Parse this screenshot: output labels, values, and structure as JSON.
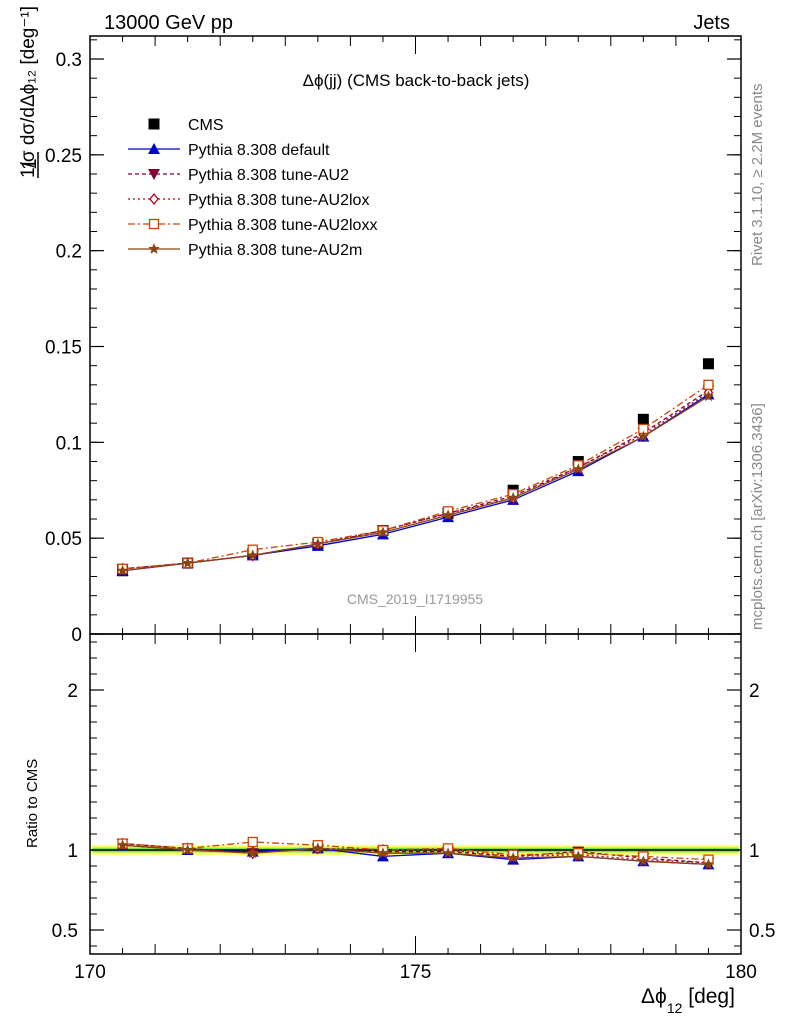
{
  "header": {
    "left": "13000 GeV pp",
    "right": "Jets"
  },
  "side_labels": {
    "rivet": "Rivet 3.1.10, ≥ 2.2M events",
    "mcplots": "mcplots.cern.ch [arXiv:1306.3436]"
  },
  "plot_title": "Δϕ(jj) (CMS back-to-back jets)",
  "watermark": "CMS_2019_I1719955",
  "colors": {
    "cms": "#000000",
    "default": "#0000cc",
    "au2": "#800033",
    "au2lox": "#b3001a",
    "au2loxx": "#cc4400",
    "au2m": "#8b4513",
    "band_inner": "#33cc33",
    "band_outer": "#ffff66"
  },
  "chart_data": [
    {
      "type": "line",
      "panel": "main",
      "ylabel": "1/σ dσ/dΔϕ_12 [deg^-1]",
      "xlim": [
        170,
        180
      ],
      "ylim": [
        0,
        0.312
      ],
      "yticks": [
        "0",
        "0.05",
        "0.1",
        "0.15",
        "0.2",
        "0.25",
        "0.3"
      ],
      "x": [
        170.5,
        171.5,
        172.5,
        173.5,
        174.5,
        175.5,
        176.5,
        177.5,
        178.5,
        179.5
      ],
      "series": [
        {
          "name": "CMS",
          "key": "cms",
          "marker": "square",
          "values": [
            0.033,
            0.037,
            0.042,
            0.047,
            0.054,
            0.063,
            0.075,
            0.09,
            0.112,
            0.141
          ]
        },
        {
          "name": "Pythia 8.308 default",
          "key": "default",
          "marker": "triangle-up",
          "values": [
            0.033,
            0.037,
            0.041,
            0.046,
            0.052,
            0.061,
            0.07,
            0.085,
            0.103,
            0.125
          ]
        },
        {
          "name": "Pythia 8.308 tune-AU2",
          "key": "au2",
          "marker": "triangle-down",
          "values": [
            0.034,
            0.037,
            0.041,
            0.047,
            0.054,
            0.063,
            0.072,
            0.087,
            0.105,
            0.127
          ]
        },
        {
          "name": "Pythia 8.308 tune-AU2lox",
          "key": "au2lox",
          "marker": "diamond",
          "values": [
            0.034,
            0.037,
            0.041,
            0.047,
            0.054,
            0.063,
            0.071,
            0.087,
            0.104,
            0.126
          ]
        },
        {
          "name": "Pythia 8.308 tune-AU2loxx",
          "key": "au2loxx",
          "marker": "open-square",
          "values": [
            0.034,
            0.037,
            0.044,
            0.048,
            0.054,
            0.064,
            0.073,
            0.088,
            0.107,
            0.13
          ]
        },
        {
          "name": "Pythia 8.308 tune-AU2m",
          "key": "au2m",
          "marker": "star",
          "values": [
            0.033,
            0.037,
            0.041,
            0.047,
            0.053,
            0.062,
            0.071,
            0.086,
            0.103,
            0.124
          ]
        }
      ]
    },
    {
      "type": "line",
      "panel": "ratio",
      "xlabel": "Δϕ_12 [deg]",
      "ylabel": "Ratio to CMS",
      "xlim": [
        170,
        180
      ],
      "ylim": [
        0.35,
        2.35
      ],
      "xticks": [
        "170",
        "175",
        "180"
      ],
      "yticks": [
        "0.5",
        "1",
        "2"
      ],
      "x": [
        170.5,
        171.5,
        172.5,
        173.5,
        174.5,
        175.5,
        176.5,
        177.5,
        178.5,
        179.5
      ],
      "band": {
        "inner": [
          0.985,
          1.015
        ],
        "outer": [
          0.97,
          1.03
        ]
      },
      "series": [
        {
          "name": "Pythia 8.308 default",
          "key": "default",
          "marker": "triangle-up",
          "values": [
            1.03,
            1.0,
            0.99,
            1.01,
            0.96,
            0.98,
            0.94,
            0.96,
            0.93,
            0.91
          ]
        },
        {
          "name": "Pythia 8.308 tune-AU2",
          "key": "au2",
          "marker": "triangle-down",
          "values": [
            1.04,
            1.01,
            0.98,
            1.01,
            0.99,
            0.99,
            0.96,
            0.99,
            0.95,
            0.92
          ]
        },
        {
          "name": "Pythia 8.308 tune-AU2lox",
          "key": "au2lox",
          "marker": "diamond",
          "values": [
            1.04,
            1.01,
            0.98,
            1.01,
            1.0,
            1.0,
            0.96,
            0.97,
            0.94,
            0.92
          ]
        },
        {
          "name": "Pythia 8.308 tune-AU2loxx",
          "key": "au2loxx",
          "marker": "open-square",
          "values": [
            1.04,
            1.01,
            1.05,
            1.03,
            1.0,
            1.01,
            0.97,
            0.98,
            0.96,
            0.94
          ]
        },
        {
          "name": "Pythia 8.308 tune-AU2m",
          "key": "au2m",
          "marker": "star",
          "values": [
            1.03,
            1.0,
            0.98,
            1.01,
            0.98,
            0.98,
            0.95,
            0.96,
            0.93,
            0.91
          ]
        }
      ]
    }
  ]
}
